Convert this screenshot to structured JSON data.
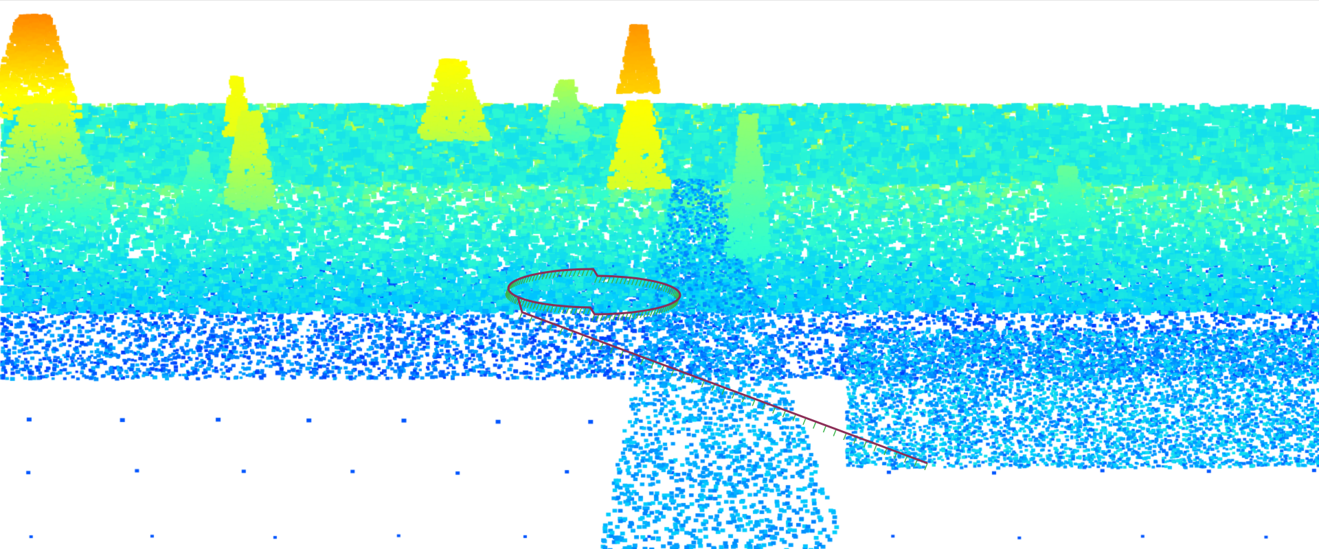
{
  "viewer": {
    "background": "#ffffff",
    "colormap": "jet",
    "colormap_stops": [
      "#0000ff",
      "#0066ff",
      "#00ccff",
      "#33ffcc",
      "#ccff33",
      "#ffff00",
      "#ff9900",
      "#ff3300"
    ],
    "trajectory": {
      "line_color": "#8b2d56",
      "tick_color": "#3bb54a",
      "shape": "loop"
    }
  }
}
